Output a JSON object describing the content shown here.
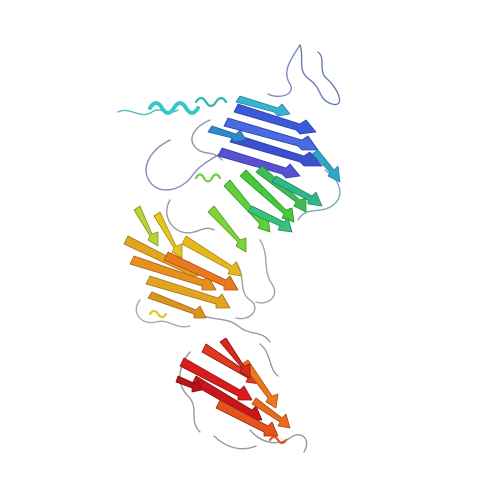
{
  "image": {
    "kind": "protein ribbon rendering",
    "palette": {
      "n_terminus": "#1f3fd6",
      "blue": "#3a5bd9",
      "cyan": "#39c6c8",
      "teal": "#2fb7a8",
      "green": "#46c93a",
      "lime": "#b7d23a",
      "yellow": "#e6c51e",
      "gold": "#e0a61d",
      "orange": "#e77a1c",
      "red_orange": "#e34d1d",
      "red": "#d91c1c",
      "coil_gray": "#8a8a9a"
    },
    "domains": [
      {
        "name": "domain-blue-cyan",
        "color": "#3a7fd6"
      },
      {
        "name": "domain-green",
        "color": "#46c93a"
      },
      {
        "name": "domain-orange-yellow",
        "color": "#e0a61d"
      },
      {
        "name": "domain-red",
        "color": "#d91c1c"
      }
    ]
  }
}
